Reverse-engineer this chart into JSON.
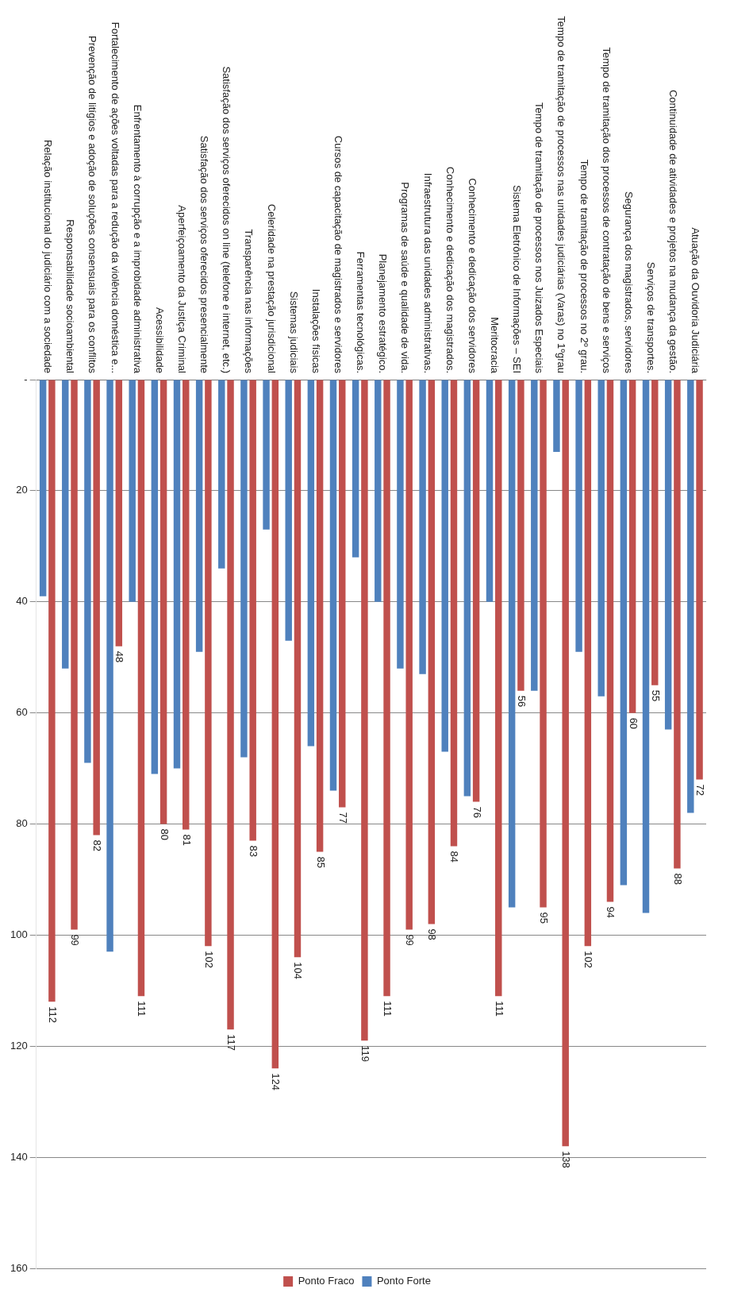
{
  "chart_data": {
    "type": "bar",
    "categories": [
      "Relação institucional do judiciário com a sociedade",
      "Responsabilidade socioambiental",
      "Prevenção de litígios e adoção de soluções consensuais para os conflitos",
      "Fortalecimento de ações voltadas para a redução da violência doméstica e...",
      "Enfrentamento à corrupção e a improbidade administrativa",
      "Acessibilidade",
      "Aperfeiçoamento da Justiça Criminal",
      "Satisfação dos serviços oferecidos presencialmente",
      "Satisfação dos serviços oferecidos on line (telefone e internet, etc.)",
      "Transparência nas informações",
      "Celeridade na prestação jurisdicional",
      "Sistemas judiciais",
      "Instalações físicas",
      "Cursos de capacitação de magistrados e servidores",
      "Ferramentas tecnológicas.",
      "Planejamento estratégico.",
      "Programas de saúde e qualidade de vida.",
      "Infraestrutura das unidades administrativas.",
      "Conhecimento e dedicação dos magistrados.",
      "Conhecimento e dedicação dos servidores",
      "Meritocracia",
      "Sistema Eletrônico de Informações – SEI",
      "Tempo de tramitação de processos nos Juizados Especiais",
      "Tempo de tramitação de processos nas unidades judiciárias (Varas) no 1ºgrau",
      "Tempo de tramitação de processos no 2º grau.",
      "Tempo de tramitação dos processos de contratação de bens e serviços",
      "Segurança dos magistrados, servidores",
      "Serviços de transportes.",
      "Continuidade de atividades e projetos na mudança da gestão.",
      "Atuação da Ouvidoria Judiciária"
    ],
    "series": [
      {
        "name": "Ponto Forte",
        "color": "#4f81bd",
        "values": [
          39,
          52,
          69,
          103,
          40,
          71,
          70,
          49,
          34,
          68,
          27,
          47,
          66,
          74,
          32,
          40,
          52,
          53,
          67,
          75,
          40,
          95,
          56,
          13,
          49,
          57,
          91,
          96,
          63,
          78
        ]
      },
      {
        "name": "Ponto Fraco",
        "color": "#c0504d",
        "values": [
          112,
          99,
          82,
          48,
          111,
          80,
          81,
          102,
          117,
          83,
          124,
          104,
          85,
          77,
          119,
          111,
          99,
          98,
          84,
          76,
          111,
          56,
          95,
          138,
          102,
          94,
          60,
          55,
          88,
          72
        ],
        "value_labels": [
          "112",
          "99",
          "82",
          "48",
          "111",
          "80",
          "81",
          "102",
          "117",
          "83",
          "124",
          "104",
          "85",
          "77",
          "119",
          "111",
          "99",
          "98",
          "84",
          "76",
          "111",
          "56",
          "95",
          "138",
          "102",
          "94",
          "60",
          "55",
          "88",
          "72"
        ]
      }
    ],
    "ylim": [
      160,
      0
    ],
    "yticks": [
      {
        "value": 0,
        "label": "-"
      },
      20,
      40,
      60,
      80,
      100,
      120,
      140,
      160
    ],
    "grid": "y",
    "legend": "bottom"
  }
}
